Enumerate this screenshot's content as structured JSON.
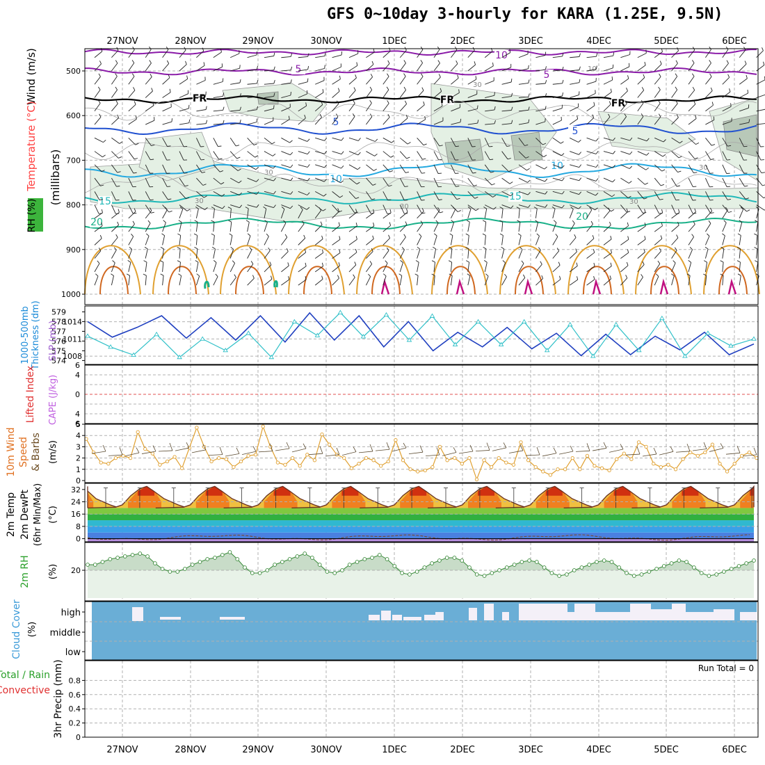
{
  "title": "GFS 0~10day 3-hourly for KARA (1.25E, 9.5N)",
  "dates": [
    "27NOV",
    "28NOV",
    "29NOV",
    "30NOV",
    "1DEC",
    "2DEC",
    "3DEC",
    "4DEC",
    "5DEC",
    "6DEC"
  ],
  "colors": {
    "purple": "#8a1aa8",
    "blue": "#2050d0",
    "cyan": "#25a9e0",
    "teal": "#20b8b8",
    "green_teal": "#18b088",
    "orange": "#e0a030",
    "dark_orange": "#d06820",
    "magenta": "#c01080",
    "rh_fill": "#e4f0e4",
    "rh_dark": "#b8c8b8",
    "cloud": "#6aaed6",
    "thickness": "#2040c0",
    "slp": "#30c0c8"
  },
  "chart_data": [
    {
      "type": "contour",
      "panel": "upper-air",
      "left_labels": [
        "RH (%)",
        "Temperature (°C)",
        "Wind (m/s)"
      ],
      "ylabel": "(millibars)",
      "yticks": [
        500,
        600,
        700,
        800,
        900,
        1000
      ],
      "ylim": [
        450,
        1000
      ],
      "temperature_labels": [
        "10",
        "5",
        "FR",
        "5",
        "10",
        "15",
        "20"
      ],
      "rh_labels": [
        "30",
        "10"
      ]
    },
    {
      "type": "line",
      "panel": "thickness-slp",
      "left_labels": [
        "1000-500mb",
        "Thickness (dm)",
        "SLP (mb)"
      ],
      "yticks_left": [
        574,
        575,
        576,
        577,
        578,
        579
      ],
      "yticks_right": [
        1008,
        1011,
        1014
      ],
      "thickness": [
        578.0,
        576.4,
        577.4,
        578.6,
        576.3,
        578.4,
        576.1,
        578.6,
        575.9,
        578.9,
        576.1,
        578.6,
        575.4,
        578.0,
        575.0,
        576.9,
        575.4,
        577.4,
        575.2,
        576.8,
        574.5,
        576.7,
        574.6,
        576.5,
        575.1,
        576.9,
        574.6,
        575.7
      ],
      "slp": [
        1011.5,
        1009.6,
        1008.2,
        1011.8,
        1007.8,
        1011.0,
        1009.0,
        1012.0,
        1007.8,
        1014.0,
        1011.6,
        1015.6,
        1011.4,
        1015.2,
        1010.8,
        1015.0,
        1010.0,
        1014.0,
        1010.0,
        1014.0,
        1009.0,
        1013.5,
        1008.0,
        1013.5,
        1009.0,
        1014.6,
        1008.0,
        1012.0,
        1009.8,
        1011.0
      ],
      "names": [
        "Thickness",
        "SLP"
      ]
    },
    {
      "type": "line",
      "panel": "stability",
      "left_labels": [
        "Lifted Index",
        "CAPE (J/kg)"
      ],
      "yticks": [
        -4,
        -2,
        0,
        2,
        4,
        6
      ],
      "ylim": [
        -6,
        6
      ],
      "lifted_index": [],
      "cape": []
    },
    {
      "type": "line",
      "panel": "wind10m",
      "left_labels": [
        "10m Wind",
        "Speed",
        "& Barbs",
        "(m/s)"
      ],
      "yticks": [
        0,
        1,
        2,
        3,
        4,
        5
      ],
      "ylim": [
        0,
        5
      ],
      "values": [
        3.7,
        2.5,
        1.6,
        1.5,
        2.0,
        2.2,
        2.0,
        4.3,
        2.8,
        2.4,
        1.4,
        1.7,
        2.1,
        1.1,
        2.9,
        4.7,
        3.0,
        1.7,
        2.0,
        1.9,
        1.2,
        1.7,
        2.2,
        2.3,
        4.8,
        3.0,
        1.6,
        1.4,
        2.0,
        1.3,
        2.3,
        1.8,
        4.1,
        3.2,
        2.3,
        2.0,
        1.1,
        1.5,
        2.0,
        1.8,
        1.3,
        1.7,
        3.6,
        1.8,
        1.0,
        0.8,
        0.9,
        1.2,
        3.0,
        1.8,
        2.0,
        1.5,
        2.0,
        0.1,
        1.8,
        1.2,
        2.0,
        1.6,
        1.4,
        3.4,
        1.8,
        1.2,
        0.8,
        0.5,
        1.0,
        1.0,
        2.0,
        1.0,
        2.2,
        1.3,
        1.1,
        0.9,
        1.9,
        2.4,
        1.9,
        3.4,
        3.0,
        1.5,
        1.2,
        1.4,
        1.0,
        1.9,
        2.5,
        2.2,
        2.5,
        3.2,
        1.5,
        0.8,
        1.5,
        2.2,
        2.5,
        2.0
      ]
    },
    {
      "type": "area",
      "panel": "temp2m",
      "left_labels": [
        "2m Temp",
        "2m DewPt",
        "(6hr Min/Max)",
        "(°C)"
      ],
      "yticks": [
        0,
        8,
        16,
        24,
        32
      ],
      "ylim": [
        -2,
        36
      ],
      "min_temp": 20,
      "max_temp": 34,
      "dewpoint_label": "DewPt"
    },
    {
      "type": "area",
      "panel": "rh2m",
      "left_labels": [
        "2m RH",
        "(%)"
      ],
      "yticks": [
        20
      ],
      "ylim": [
        0,
        40
      ],
      "values": [
        24,
        24,
        26,
        28,
        29,
        30,
        31,
        32,
        30,
        25,
        21,
        19,
        19,
        21,
        24,
        26,
        28,
        29,
        31,
        33,
        28,
        22,
        18,
        18,
        20,
        24,
        26,
        28,
        30,
        32,
        29,
        24,
        19,
        18,
        20,
        24,
        26,
        28,
        29,
        31,
        28,
        23,
        18,
        17,
        19,
        22,
        25,
        27,
        29,
        29,
        27,
        22,
        17,
        16,
        18,
        20,
        22,
        24,
        26,
        27,
        26,
        22,
        18,
        16,
        17,
        20,
        22,
        24,
        26,
        27,
        26,
        22,
        18,
        16,
        17,
        19,
        21,
        23,
        25,
        27,
        26,
        22,
        18,
        16,
        17,
        19,
        21,
        23,
        25,
        27
      ]
    },
    {
      "type": "bar",
      "panel": "cloud",
      "left_labels": [
        "Cloud Cover",
        "(%)"
      ],
      "yticks": [
        "high",
        "middle",
        "low"
      ],
      "high_clear": [
        0,
        0,
        0,
        0,
        0,
        0,
        0,
        0,
        0,
        0,
        0,
        0,
        0,
        0,
        0,
        0,
        0,
        0,
        0,
        0,
        0,
        0,
        0,
        0,
        0,
        0,
        0,
        0,
        0,
        0,
        0,
        0,
        0,
        0,
        0,
        0,
        0,
        0,
        0,
        0,
        0,
        0,
        0,
        0,
        0,
        0,
        0,
        0,
        0,
        0,
        0,
        0,
        0,
        0,
        0,
        0,
        0,
        0,
        0,
        0,
        0,
        0,
        0,
        0,
        0,
        0,
        0,
        0,
        0,
        0,
        0,
        0,
        0,
        0,
        0,
        0,
        0,
        0,
        0,
        0,
        0,
        0,
        0,
        0,
        0,
        0,
        0,
        0,
        0,
        0
      ]
    },
    {
      "type": "bar",
      "panel": "precip",
      "left_labels": [
        "Total / Rain",
        "Convective",
        "3hr Precip (mm)"
      ],
      "yticks": [
        0,
        0.2,
        0.4,
        0.6,
        0.8
      ],
      "ylim": [
        0,
        1
      ],
      "run_total_label": "Run Total = 0",
      "values": []
    }
  ]
}
